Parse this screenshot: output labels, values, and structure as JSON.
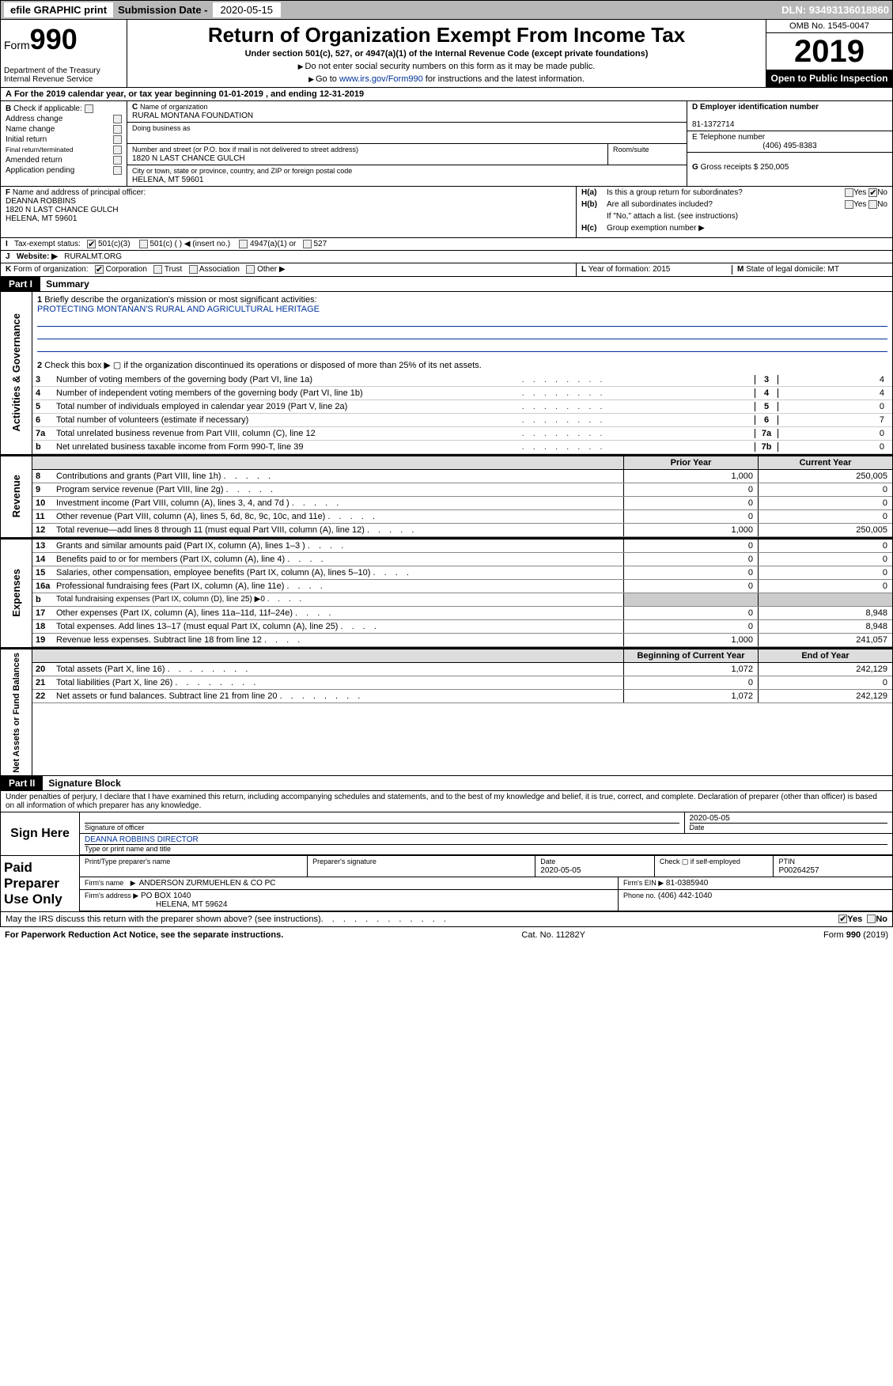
{
  "topbar": {
    "efile": "efile GRAPHIC print",
    "sub_label": "Submission Date -",
    "sub_date": "2020-05-15",
    "dln": "DLN: 93493136018860"
  },
  "header": {
    "form_label": "Form",
    "form_num": "990",
    "dept": "Department of the Treasury\nInternal Revenue Service",
    "title": "Return of Organization Exempt From Income Tax",
    "sub1": "Under section 501(c), 527, or 4947(a)(1) of the Internal Revenue Code (except private foundations)",
    "sub2a": "Do not enter social security numbers on this form as it may be made public.",
    "sub2b_pre": "Go to ",
    "sub2b_link": "www.irs.gov/Form990",
    "sub2b_post": " for instructions and the latest information.",
    "omb": "OMB No. 1545-0047",
    "year": "2019",
    "open": "Open to Public Inspection"
  },
  "row_a": {
    "label": "A",
    "text_pre": "For the 2019 calendar year, or tax year beginning ",
    "begin": "01-01-2019",
    "mid": ", and ending ",
    "end": "12-31-2019"
  },
  "section_b": {
    "b_label": "B",
    "check_if": "Check if applicable:",
    "checks": [
      "Address change",
      "Name change",
      "Initial return",
      "Final return/terminated",
      "Amended return",
      "Application pending"
    ],
    "c_label": "C",
    "c_name_label": "Name of organization",
    "c_name": "RURAL MONTANA FOUNDATION",
    "dba_label": "Doing business as",
    "addr_label": "Number and street (or P.O. box if mail is not delivered to street address)",
    "addr": "1820 N LAST CHANCE GULCH",
    "room_label": "Room/suite",
    "city_label": "City or town, state or province, country, and ZIP or foreign postal code",
    "city": "HELENA, MT  59601",
    "d_label": "D Employer identification number",
    "ein": "81-1372714",
    "e_label": "E Telephone number",
    "phone": "(406) 495-8383",
    "g_label": "G",
    "g_text": "Gross receipts $",
    "g_val": "250,005",
    "f_label": "F",
    "f_text": "Name and address of principal officer:",
    "officer_name": "DEANNA ROBBINS",
    "officer_addr1": "1820 N LAST CHANCE GULCH",
    "officer_addr2": "HELENA, MT  59601",
    "ha_label": "H(a)",
    "ha_text": "Is this a group return for subordinates?",
    "hb_label": "H(b)",
    "hb_text": "Are all subordinates included?",
    "hb_note": "If \"No,\" attach a list. (see instructions)",
    "hc_label": "H(c)",
    "hc_text": "Group exemption number ▶",
    "yes": "Yes",
    "no": "No"
  },
  "tax_exempt": {
    "i_label": "I",
    "label": "Tax-exempt status:",
    "opt1": "501(c)(3)",
    "opt2": "501(c) (   )",
    "opt2_hint": "◀ (insert no.)",
    "opt3": "4947(a)(1) or",
    "opt4": "527"
  },
  "website": {
    "j_label": "J",
    "label": "Website: ▶",
    "value": "RURALMT.ORG"
  },
  "row_k": {
    "k_label": "K",
    "label": "Form of organization:",
    "opts": [
      "Corporation",
      "Trust",
      "Association",
      "Other ▶"
    ],
    "l_label": "L",
    "l_text": "Year of formation:",
    "l_val": "2015",
    "m_label": "M",
    "m_text": "State of legal domicile:",
    "m_val": "MT"
  },
  "part1": {
    "header": "Part I",
    "title": "Summary",
    "vert_gov": "Activities & Governance",
    "line1_label": "1",
    "line1_text": "Briefly describe the organization's mission or most significant activities:",
    "line1_val": "PROTECTING MONTANAN'S RURAL AND AGRICULTURAL HERITAGE",
    "line2_label": "2",
    "line2_text": "Check this box ▶ ▢ if the organization discontinued its operations or disposed of more than 25% of its net assets.",
    "lines": [
      {
        "n": "3",
        "d": "Number of voting members of the governing body (Part VI, line 1a)",
        "b": "3",
        "v": "4"
      },
      {
        "n": "4",
        "d": "Number of independent voting members of the governing body (Part VI, line 1b)",
        "b": "4",
        "v": "4"
      },
      {
        "n": "5",
        "d": "Total number of individuals employed in calendar year 2019 (Part V, line 2a)",
        "b": "5",
        "v": "0"
      },
      {
        "n": "6",
        "d": "Total number of volunteers (estimate if necessary)",
        "b": "6",
        "v": "7"
      },
      {
        "n": "7a",
        "d": "Total unrelated business revenue from Part VIII, column (C), line 12",
        "b": "7a",
        "v": "0"
      },
      {
        "n": "b",
        "d": "Net unrelated business taxable income from Form 990-T, line 39",
        "b": "7b",
        "v": "0"
      }
    ],
    "col_prior": "Prior Year",
    "col_current": "Current Year",
    "vert_rev": "Revenue",
    "revenue": [
      {
        "n": "8",
        "d": "Contributions and grants (Part VIII, line 1h)",
        "p": "1,000",
        "c": "250,005"
      },
      {
        "n": "9",
        "d": "Program service revenue (Part VIII, line 2g)",
        "p": "0",
        "c": "0"
      },
      {
        "n": "10",
        "d": "Investment income (Part VIII, column (A), lines 3, 4, and 7d )",
        "p": "0",
        "c": "0"
      },
      {
        "n": "11",
        "d": "Other revenue (Part VIII, column (A), lines 5, 6d, 8c, 9c, 10c, and 11e)",
        "p": "0",
        "c": "0"
      },
      {
        "n": "12",
        "d": "Total revenue—add lines 8 through 11 (must equal Part VIII, column (A), line 12)",
        "p": "1,000",
        "c": "250,005"
      }
    ],
    "vert_exp": "Expenses",
    "expenses": [
      {
        "n": "13",
        "d": "Grants and similar amounts paid (Part IX, column (A), lines 1–3 )",
        "p": "0",
        "c": "0"
      },
      {
        "n": "14",
        "d": "Benefits paid to or for members (Part IX, column (A), line 4)",
        "p": "0",
        "c": "0"
      },
      {
        "n": "15",
        "d": "Salaries, other compensation, employee benefits (Part IX, column (A), lines 5–10)",
        "p": "0",
        "c": "0"
      },
      {
        "n": "16a",
        "d": "Professional fundraising fees (Part IX, column (A), line 11e)",
        "p": "0",
        "c": "0"
      },
      {
        "n": "b",
        "d": "Total fundraising expenses (Part IX, column (D), line 25) ▶0",
        "p": "shaded",
        "c": "shaded"
      },
      {
        "n": "17",
        "d": "Other expenses (Part IX, column (A), lines 11a–11d, 11f–24e)",
        "p": "0",
        "c": "8,948"
      },
      {
        "n": "18",
        "d": "Total expenses. Add lines 13–17 (must equal Part IX, column (A), line 25)",
        "p": "0",
        "c": "8,948"
      },
      {
        "n": "19",
        "d": "Revenue less expenses. Subtract line 18 from line 12",
        "p": "1,000",
        "c": "241,057"
      }
    ],
    "col_begin": "Beginning of Current Year",
    "col_end": "End of Year",
    "vert_net": "Net Assets or Fund Balances",
    "net": [
      {
        "n": "20",
        "d": "Total assets (Part X, line 16)",
        "p": "1,072",
        "c": "242,129"
      },
      {
        "n": "21",
        "d": "Total liabilities (Part X, line 26)",
        "p": "0",
        "c": "0"
      },
      {
        "n": "22",
        "d": "Net assets or fund balances. Subtract line 21 from line 20",
        "p": "1,072",
        "c": "242,129"
      }
    ]
  },
  "part2": {
    "header": "Part II",
    "title": "Signature Block",
    "perjury": "Under penalties of perjury, I declare that I have examined this return, including accompanying schedules and statements, and to the best of my knowledge and belief, it is true, correct, and complete. Declaration of preparer (other than officer) is based on all information of which preparer has any knowledge.",
    "sign_here": "Sign Here",
    "sig_officer": "Signature of officer",
    "sig_date": "2020-05-05",
    "date_label": "Date",
    "officer_name": "DEANNA ROBBINS  DIRECTOR",
    "type_name": "Type or print name and title",
    "paid": "Paid Preparer Use Only",
    "prep_name_label": "Print/Type preparer's name",
    "prep_sig_label": "Preparer's signature",
    "prep_date_label": "Date",
    "prep_date": "2020-05-05",
    "check_self": "Check ▢ if self-employed",
    "ptin_label": "PTIN",
    "ptin": "P00264257",
    "firm_name_label": "Firm's name",
    "firm_name": "ANDERSON ZURMUEHLEN & CO PC",
    "firm_ein_label": "Firm's EIN ▶",
    "firm_ein": "81-0385940",
    "firm_addr_label": "Firm's address ▶",
    "firm_addr1": "PO BOX 1040",
    "firm_addr2": "HELENA, MT 59624",
    "phone_label": "Phone no.",
    "phone": "(406) 442-1040",
    "discuss": "May the IRS discuss this return with the preparer shown above? (see instructions)",
    "yes": "Yes",
    "no": "No"
  },
  "footer": {
    "left": "For Paperwork Reduction Act Notice, see the separate instructions.",
    "mid": "Cat. No. 11282Y",
    "right": "Form 990 (2019)"
  }
}
